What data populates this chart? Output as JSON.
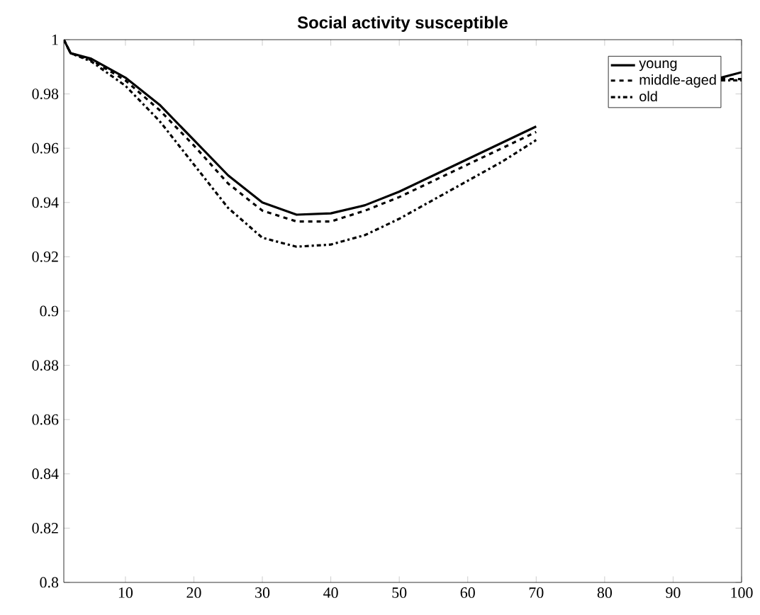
{
  "chart_data": {
    "type": "line",
    "title": "Social activity susceptible",
    "x": [
      1,
      2,
      5,
      10,
      15,
      20,
      25,
      30,
      35,
      40,
      45,
      50,
      55,
      60,
      65,
      70,
      75,
      80,
      85,
      90,
      95,
      97,
      100
    ],
    "series": [
      {
        "name": "young",
        "color": "#000000",
        "line_style": "solid",
        "values": [
          1,
          0.995,
          0.993,
          0.986,
          0.976,
          0.963,
          0.95,
          0.94,
          0.9355,
          0.936,
          0.939,
          0.944,
          0.95,
          0.956,
          0.962,
          0.968,
          null,
          null,
          null,
          null,
          null,
          0.986,
          0.988
        ]
      },
      {
        "name": "middle-aged",
        "color": "#000000",
        "line_style": "dashed",
        "values": [
          1,
          0.995,
          0.9925,
          0.985,
          0.974,
          0.961,
          0.947,
          0.937,
          0.933,
          0.933,
          0.937,
          0.942,
          0.948,
          0.954,
          0.96,
          0.966,
          null,
          null,
          null,
          null,
          null,
          0.9855,
          0.9855
        ]
      },
      {
        "name": "old",
        "color": "#000000",
        "line_style": "dashdot",
        "values": [
          1,
          0.995,
          0.992,
          0.983,
          0.97,
          0.954,
          0.938,
          0.927,
          0.9237,
          0.9245,
          0.928,
          0.934,
          0.941,
          0.948,
          0.955,
          0.963,
          null,
          null,
          null,
          null,
          null,
          0.985,
          0.985
        ]
      }
    ],
    "xlim": [
      1,
      100
    ],
    "ylim": [
      0.8,
      1
    ],
    "xticks": [
      10,
      20,
      30,
      40,
      50,
      60,
      70,
      80,
      90,
      100
    ],
    "yticks": [
      0.8,
      0.82,
      0.84,
      0.86,
      0.88,
      0.9,
      0.92,
      0.94,
      0.96,
      0.98,
      1
    ],
    "legend": "top right",
    "grid": false,
    "marker": "none"
  }
}
